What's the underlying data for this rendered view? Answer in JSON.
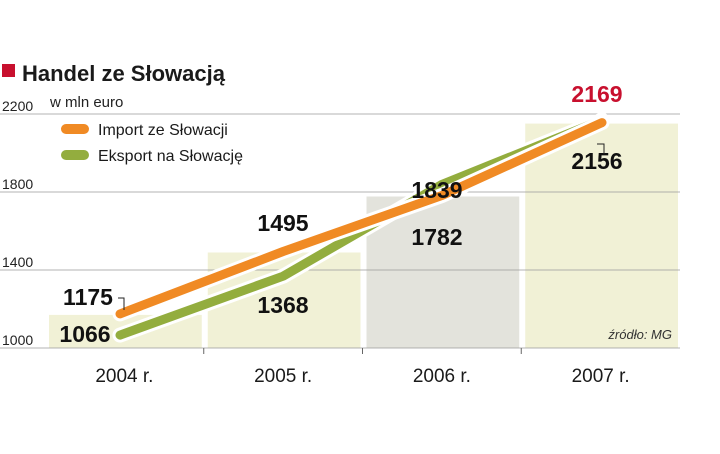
{
  "chart_data": {
    "type": "line",
    "title": "Handel ze Słowacją",
    "subtitle": "w mln euro",
    "categories": [
      "2004 r.",
      "2005 r.",
      "2006 r.",
      "2007 r."
    ],
    "ylim": [
      1000,
      2200
    ],
    "yticks": [
      "1000",
      "1400",
      "1800",
      "2200"
    ],
    "grid": true,
    "legend_position": "top-left",
    "source": "źródło: MG",
    "series": [
      {
        "name": "Import ze Słowacji",
        "color": "#f08a24",
        "values": [
          1175,
          1495,
          1782,
          2156
        ]
      },
      {
        "name": "Eksport na Słowację",
        "color": "#93ad3e",
        "values": [
          1066,
          1368,
          1839,
          2169
        ]
      }
    ],
    "colors": {
      "accent": "#c8102e",
      "highlight_label": "#c8102e",
      "band_yellow": "#f1f1d6",
      "band_gray": "#e3e3dc"
    }
  }
}
